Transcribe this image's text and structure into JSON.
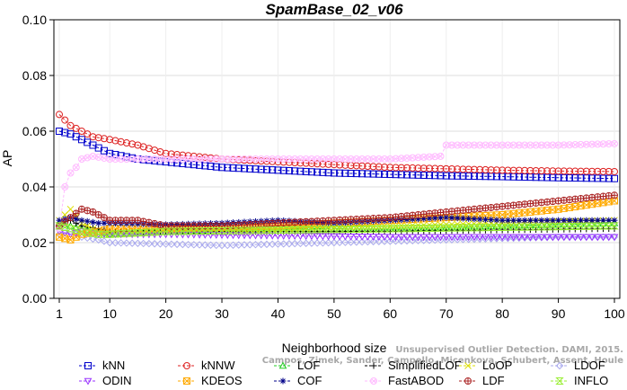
{
  "chart_data": {
    "type": "line",
    "title": "SpamBase_02_v06",
    "xlabel": "Neighborhood size",
    "ylabel": "AP",
    "xlim": [
      1,
      100
    ],
    "ylim": [
      0,
      0.1
    ],
    "xticks": [
      1,
      10,
      20,
      30,
      40,
      50,
      60,
      70,
      80,
      90,
      100
    ],
    "yticks": [
      "0.00",
      "0.02",
      "0.04",
      "0.06",
      "0.08",
      "0.10"
    ],
    "legend_position": "bottom",
    "series": [
      {
        "name": "kNN",
        "color": "#0000cc",
        "marker": "square",
        "points": [
          [
            1,
            0.06
          ],
          [
            3,
            0.059
          ],
          [
            5,
            0.057
          ],
          [
            7,
            0.055
          ],
          [
            10,
            0.052
          ],
          [
            15,
            0.05
          ],
          [
            20,
            0.049
          ],
          [
            30,
            0.047
          ],
          [
            40,
            0.046
          ],
          [
            50,
            0.045
          ],
          [
            60,
            0.0445
          ],
          [
            70,
            0.044
          ],
          [
            80,
            0.0437
          ],
          [
            90,
            0.0433
          ],
          [
            100,
            0.043
          ]
        ]
      },
      {
        "name": "kNNW",
        "color": "#dd2222",
        "marker": "circle",
        "points": [
          [
            1,
            0.066
          ],
          [
            3,
            0.062
          ],
          [
            5,
            0.06
          ],
          [
            7,
            0.058
          ],
          [
            10,
            0.057
          ],
          [
            15,
            0.055
          ],
          [
            20,
            0.052
          ],
          [
            30,
            0.05
          ],
          [
            40,
            0.049
          ],
          [
            50,
            0.048
          ],
          [
            60,
            0.047
          ],
          [
            70,
            0.0465
          ],
          [
            80,
            0.046
          ],
          [
            90,
            0.0457
          ],
          [
            100,
            0.0455
          ]
        ]
      },
      {
        "name": "LOF",
        "color": "#22cc22",
        "marker": "triangle",
        "points": [
          [
            1,
            0.027
          ],
          [
            3,
            0.026
          ],
          [
            5,
            0.025
          ],
          [
            8,
            0.024
          ],
          [
            10,
            0.023
          ],
          [
            20,
            0.024
          ],
          [
            40,
            0.025
          ],
          [
            60,
            0.025
          ],
          [
            80,
            0.026
          ],
          [
            100,
            0.027
          ]
        ]
      },
      {
        "name": "SimplifiedLOF",
        "color": "#000000",
        "marker": "plus",
        "points": [
          [
            1,
            0.027
          ],
          [
            3,
            0.028
          ],
          [
            5,
            0.026
          ],
          [
            8,
            0.025
          ],
          [
            10,
            0.024
          ],
          [
            20,
            0.024
          ],
          [
            40,
            0.024
          ],
          [
            60,
            0.024
          ],
          [
            80,
            0.0245
          ],
          [
            100,
            0.025
          ]
        ]
      },
      {
        "name": "LoOP",
        "color": "#dddd00",
        "marker": "x",
        "points": [
          [
            1,
            0.028
          ],
          [
            3,
            0.032
          ],
          [
            5,
            0.027
          ],
          [
            8,
            0.024
          ],
          [
            10,
            0.023
          ],
          [
            20,
            0.024
          ],
          [
            40,
            0.025
          ],
          [
            60,
            0.026
          ],
          [
            80,
            0.027
          ],
          [
            100,
            0.028
          ]
        ]
      },
      {
        "name": "LDOF",
        "color": "#aaaaee",
        "marker": "diamond",
        "points": [
          [
            1,
            0.023
          ],
          [
            3,
            0.024
          ],
          [
            5,
            0.022
          ],
          [
            8,
            0.021
          ],
          [
            10,
            0.02
          ],
          [
            20,
            0.0195
          ],
          [
            30,
            0.019
          ],
          [
            40,
            0.0195
          ],
          [
            50,
            0.02
          ],
          [
            60,
            0.0205
          ],
          [
            70,
            0.021
          ],
          [
            80,
            0.0215
          ],
          [
            90,
            0.022
          ],
          [
            100,
            0.022
          ]
        ]
      },
      {
        "name": "ODIN",
        "color": "#9933ff",
        "marker": "triangle-down",
        "points": [
          [
            1,
            0.024
          ],
          [
            3,
            0.023
          ],
          [
            5,
            0.024
          ],
          [
            8,
            0.023
          ],
          [
            10,
            0.023
          ],
          [
            20,
            0.023
          ],
          [
            40,
            0.0225
          ],
          [
            60,
            0.022
          ],
          [
            80,
            0.022
          ],
          [
            100,
            0.022
          ]
        ]
      },
      {
        "name": "KDEOS",
        "color": "#ffaa00",
        "marker": "square-x",
        "points": [
          [
            1,
            0.022
          ],
          [
            3,
            0.021
          ],
          [
            5,
            0.023
          ],
          [
            8,
            0.024
          ],
          [
            10,
            0.025
          ],
          [
            20,
            0.025
          ],
          [
            30,
            0.0255
          ],
          [
            40,
            0.026
          ],
          [
            50,
            0.027
          ],
          [
            60,
            0.028
          ],
          [
            70,
            0.029
          ],
          [
            80,
            0.03
          ],
          [
            90,
            0.032
          ],
          [
            100,
            0.035
          ]
        ]
      },
      {
        "name": "COF",
        "color": "#000088",
        "marker": "asterisk",
        "points": [
          [
            1,
            0.028
          ],
          [
            3,
            0.029
          ],
          [
            5,
            0.028
          ],
          [
            8,
            0.027
          ],
          [
            10,
            0.027
          ],
          [
            20,
            0.0265
          ],
          [
            30,
            0.027
          ],
          [
            40,
            0.028
          ],
          [
            50,
            0.027
          ],
          [
            60,
            0.028
          ],
          [
            70,
            0.029
          ],
          [
            80,
            0.028
          ],
          [
            90,
            0.028
          ],
          [
            100,
            0.028
          ]
        ]
      },
      {
        "name": "FastABOD",
        "color": "#ffbbff",
        "marker": "cross-circle",
        "points": [
          [
            1,
            0.025
          ],
          [
            2,
            0.04
          ],
          [
            3,
            0.045
          ],
          [
            4,
            0.047
          ],
          [
            5,
            0.05
          ],
          [
            7,
            0.051
          ],
          [
            10,
            0.05
          ],
          [
            20,
            0.05
          ],
          [
            30,
            0.05
          ],
          [
            40,
            0.05
          ],
          [
            50,
            0.05
          ],
          [
            60,
            0.05
          ],
          [
            69,
            0.051
          ],
          [
            70,
            0.055
          ],
          [
            80,
            0.055
          ],
          [
            90,
            0.055
          ],
          [
            100,
            0.0555
          ]
        ]
      },
      {
        "name": "LDF",
        "color": "#aa2222",
        "marker": "circle-plus",
        "points": [
          [
            1,
            0.026
          ],
          [
            3,
            0.029
          ],
          [
            5,
            0.032
          ],
          [
            7,
            0.031
          ],
          [
            10,
            0.028
          ],
          [
            15,
            0.028
          ],
          [
            20,
            0.026
          ],
          [
            30,
            0.026
          ],
          [
            40,
            0.027
          ],
          [
            50,
            0.028
          ],
          [
            60,
            0.029
          ],
          [
            70,
            0.031
          ],
          [
            80,
            0.033
          ],
          [
            90,
            0.035
          ],
          [
            100,
            0.037
          ]
        ]
      },
      {
        "name": "INFLO",
        "color": "#99ee33",
        "marker": "hourglass",
        "points": [
          [
            1,
            0.026
          ],
          [
            3,
            0.025
          ],
          [
            5,
            0.024
          ],
          [
            8,
            0.023
          ],
          [
            10,
            0.023
          ],
          [
            20,
            0.024
          ],
          [
            40,
            0.0245
          ],
          [
            60,
            0.025
          ],
          [
            80,
            0.0255
          ],
          [
            100,
            0.026
          ]
        ]
      }
    ],
    "watermark": [
      "Campos, Zimek, Sander, Campello, Micenkova, Schubert, Assent, Houle",
      "Unsupervised Outlier Detection. DAMI, 2015."
    ]
  }
}
